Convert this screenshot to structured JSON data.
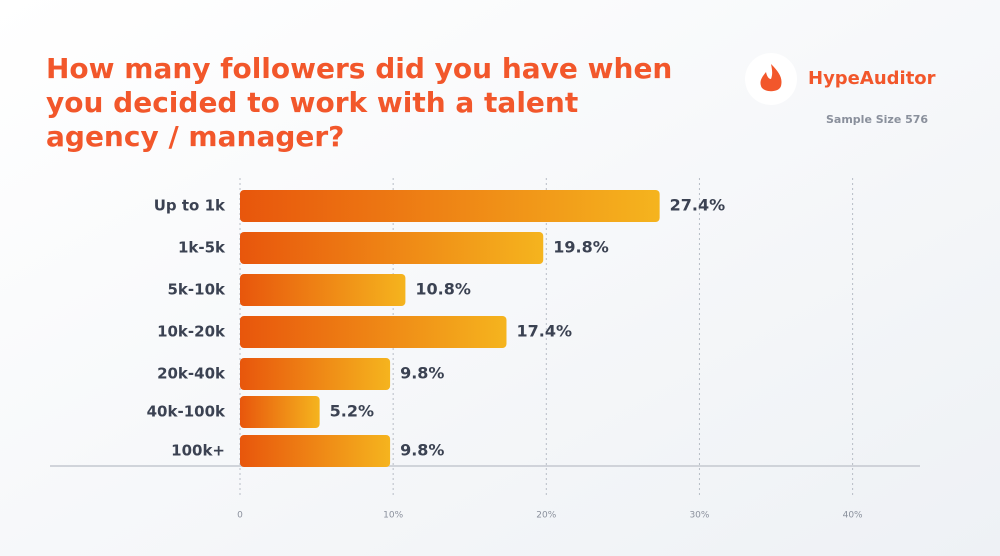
{
  "chart_data": {
    "type": "hbar",
    "title": [
      "How many followers did you have when",
      "you decided to work with a talent",
      "agency / manager?"
    ],
    "brand": "HypeAuditor",
    "subtitle": "Sample Size 576",
    "categories": [
      "Up to 1k",
      "1k-5k",
      "5k-10k",
      "10k-20k",
      "20k-40k",
      "40k-100k",
      "100k+"
    ],
    "values": [
      27.4,
      19.8,
      10.8,
      17.4,
      9.8,
      5.2,
      9.8
    ],
    "value_labels": [
      "27.4%",
      "19.8%",
      "10.8%",
      "17.4%",
      "9.8%",
      "5.2%",
      "9.8%"
    ],
    "gradient": [
      "#e8560c",
      "#f5b41e"
    ],
    "xlim": [
      0,
      44.4
    ],
    "xticks": [
      0,
      {
        "value": 10,
        "label": "10%"
      },
      {
        "value": 20,
        "label": "20%"
      },
      {
        "value": 30,
        "label": "30%"
      },
      {
        "value": 40,
        "label": "40%"
      }
    ],
    "grid": true
  }
}
